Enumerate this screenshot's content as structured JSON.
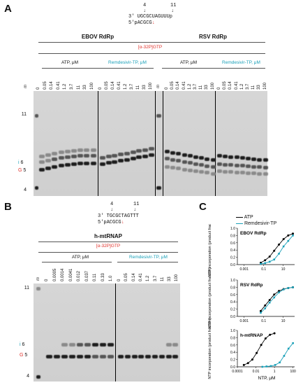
{
  "panel_a": {
    "letter": "A",
    "site_labels": [
      "4",
      "11"
    ],
    "seq_top": "3' UGCGCUAGUUUp",
    "seq_bottom": "5'pACGCG",
    "seq_bottom_end": "↓",
    "groups": [
      "EBOV RdRp",
      "RSV RdRp"
    ],
    "radiolabel": "[α-32P]GTP",
    "conditions": [
      "ATP, μM",
      "Remdesivir-TP, μM",
      "ATP, μM",
      "Remdesivir-TP, μM"
    ],
    "marker_lane": "m",
    "concentrations": [
      "0",
      "0.05",
      "0.14",
      "0.41",
      "1.2",
      "3.7",
      "11",
      "33",
      "100"
    ],
    "size_markers": [
      "11",
      "4"
    ],
    "band_labels": [
      {
        "prefix": "i",
        "num": "6"
      },
      {
        "prefix": "G",
        "num": "5"
      }
    ]
  },
  "panel_b": {
    "letter": "B",
    "site_labels": [
      "4",
      "11"
    ],
    "seq_top": "3' TGCGCTAGTTT",
    "seq_bottom": "5'pACGCG",
    "seq_bottom_end": "↓",
    "group": "h-mtRNAP",
    "radiolabel": "[α-32P]GTP",
    "conditions": [
      "ATP, μM",
      "Remdesivir-TP, μM"
    ],
    "marker_lane": "m",
    "atp_conc": [
      "0",
      "0.0005",
      "0.0014",
      "0.0041",
      "0.012",
      "0.037",
      "0.11",
      "0.33",
      "1.0"
    ],
    "rem_conc": [
      "0",
      "0.05",
      "0.14",
      "0.41",
      "1.2",
      "3.7",
      "11",
      "33",
      "100"
    ],
    "size_markers": [
      "11",
      "4"
    ],
    "band_labels": [
      {
        "prefix": "i",
        "num": "6"
      },
      {
        "prefix": "G",
        "num": "5"
      }
    ]
  },
  "panel_c": {
    "letter": "C",
    "legend": [
      "ATP",
      "Remdesivir-TP"
    ],
    "colors": {
      "atp": "#000000",
      "rem": "#1aa0b8"
    },
    "ylabel": "NTP incorporation (product fraction)",
    "xlabel": "NTP, μM",
    "y_ticks": [
      "0.0",
      "0.2",
      "0.4",
      "0.6",
      "0.8",
      "1.0"
    ],
    "x_ticks_top": [
      "0.001",
      "0.1",
      "10"
    ],
    "x_ticks_bottom": [
      "0.0001",
      "0.01",
      "1",
      "100"
    ]
  },
  "chart_data": [
    {
      "type": "scatter",
      "title": "EBOV RdRp",
      "ylim": [
        0,
        1
      ],
      "xscale": "log",
      "xlim": [
        0.0002,
        150
      ],
      "series": [
        {
          "name": "ATP",
          "x": [
            0.05,
            0.14,
            0.41,
            1.2,
            3.7,
            11,
            33,
            100
          ],
          "y": [
            0.05,
            0.12,
            0.22,
            0.38,
            0.55,
            0.7,
            0.8,
            0.85
          ]
        },
        {
          "name": "Remdesivir-TP",
          "x": [
            0.05,
            0.14,
            0.41,
            1.2,
            3.7,
            11,
            33,
            100
          ],
          "y": [
            0.02,
            0.04,
            0.08,
            0.14,
            0.3,
            0.5,
            0.65,
            0.8
          ]
        }
      ]
    },
    {
      "type": "scatter",
      "title": "RSV RdRp",
      "ylim": [
        0,
        1
      ],
      "xscale": "log",
      "xlim": [
        0.0002,
        150
      ],
      "series": [
        {
          "name": "ATP",
          "x": [
            0.05,
            0.14,
            0.41,
            1.2,
            3.7,
            11,
            33,
            100
          ],
          "y": [
            0.15,
            0.3,
            0.45,
            0.6,
            0.7,
            0.75,
            0.78,
            0.8
          ]
        },
        {
          "name": "Remdesivir-TP",
          "x": [
            0.05,
            0.14,
            0.41,
            1.2,
            3.7,
            11,
            33,
            100
          ],
          "y": [
            0.1,
            0.22,
            0.38,
            0.52,
            0.66,
            0.74,
            0.78,
            0.8
          ]
        }
      ]
    },
    {
      "type": "scatter",
      "title": "h-mtRNAP",
      "ylim": [
        0,
        1
      ],
      "xscale": "log",
      "xlim": [
        0.0001,
        150
      ],
      "series": [
        {
          "name": "ATP",
          "x": [
            0.0005,
            0.0014,
            0.0041,
            0.012,
            0.037,
            0.11,
            0.33,
            1.0
          ],
          "y": [
            0.05,
            0.1,
            0.2,
            0.38,
            0.6,
            0.78,
            0.88,
            0.92
          ]
        },
        {
          "name": "Remdesivir-TP",
          "x": [
            0.05,
            0.14,
            0.41,
            1.2,
            3.7,
            11,
            33,
            100
          ],
          "y": [
            0.0,
            0.01,
            0.02,
            0.05,
            0.12,
            0.3,
            0.5,
            0.65
          ]
        }
      ]
    }
  ]
}
